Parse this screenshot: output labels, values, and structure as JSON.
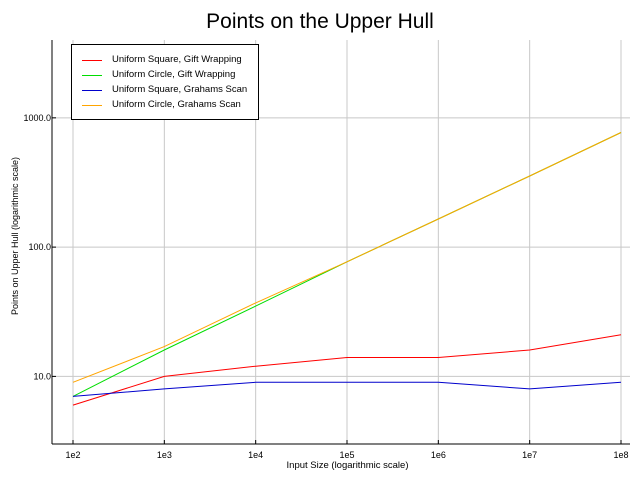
{
  "chart_data": {
    "type": "line",
    "title": "Points on the Upper Hull",
    "xlabel": "Input Size (logarithmic scale)",
    "ylabel": "Points on Upper Hull (logarithmic scale)",
    "x_scale": "log",
    "y_scale": "log",
    "categories": [
      "1e2",
      "1e3",
      "1e4",
      "1e5",
      "1e6",
      "1e7",
      "1e8"
    ],
    "x": [
      100,
      1000,
      10000,
      100000,
      1000000,
      10000000,
      100000000
    ],
    "y_ticks": [
      10.0,
      100.0,
      1000.0
    ],
    "y_tick_labels": [
      "10.0",
      "100.0",
      "1000.0"
    ],
    "ylim": [
      3,
      4000
    ],
    "grid": true,
    "legend_position": "top-left",
    "series": [
      {
        "name": "Uniform Square, Gift Wrapping",
        "color": "#ff0000",
        "values": [
          6,
          10,
          12,
          14,
          14,
          16,
          21
        ]
      },
      {
        "name": "Uniform Circle, Gift Wrapping",
        "color": "#00dd00",
        "values": [
          7,
          16,
          35,
          77,
          165,
          355,
          770
        ]
      },
      {
        "name": "Uniform Square, Grahams Scan",
        "color": "#0000cc",
        "values": [
          7,
          8,
          9,
          9,
          9,
          8,
          9
        ]
      },
      {
        "name": "Uniform Circle, Grahams Scan",
        "color": "#ffa500",
        "values": [
          9,
          17,
          37,
          77,
          165,
          355,
          770
        ]
      }
    ]
  }
}
